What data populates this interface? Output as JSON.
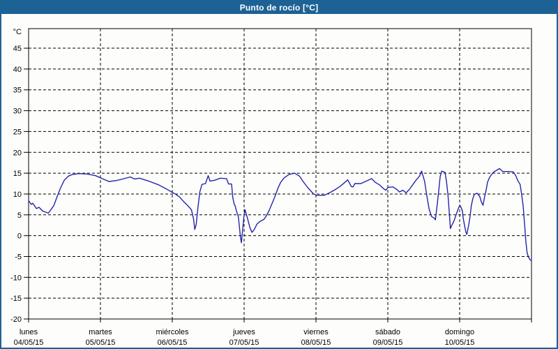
{
  "window": {
    "title": "Punto de rocío [°C]",
    "accent_color": "#1d6295",
    "background_color": "#fdfefb"
  },
  "chart_data": {
    "type": "line",
    "title": "Punto de rocío [°C]",
    "ylabel": "°C",
    "xlabel": "",
    "ylim": [
      -20,
      49.7
    ],
    "xlim_hours": [
      0,
      168
    ],
    "yticks": [
      -20,
      -15,
      -10,
      -5,
      0,
      5,
      10,
      15,
      20,
      25,
      30,
      35,
      40,
      45
    ],
    "grid": "dashed-black",
    "legend": "none",
    "line_color": "#2424aa",
    "x_day_labels": [
      {
        "name": "lunes",
        "date": "04/05/15"
      },
      {
        "name": "martes",
        "date": "05/05/15"
      },
      {
        "name": "miércoles",
        "date": "06/05/15"
      },
      {
        "name": "jueves",
        "date": "07/05/15"
      },
      {
        "name": "viernes",
        "date": "08/05/15"
      },
      {
        "name": "sábado",
        "date": "09/05/15"
      },
      {
        "name": "domingo",
        "date": "10/05/15"
      }
    ],
    "series": [
      {
        "name": "Punto de rocío",
        "unit": "°C",
        "points_hours_degC": [
          [
            0,
            8.4
          ],
          [
            0.9,
            7.5
          ],
          [
            1.4,
            7.8
          ],
          [
            2.6,
            6.5
          ],
          [
            3.5,
            6.8
          ],
          [
            4.7,
            5.9
          ],
          [
            6.6,
            5.4
          ],
          [
            8.4,
            7.2
          ],
          [
            9.6,
            9.5
          ],
          [
            10.7,
            11.5
          ],
          [
            11.9,
            13.3
          ],
          [
            13.3,
            14.3
          ],
          [
            14.7,
            14.7
          ],
          [
            16.8,
            14.9
          ],
          [
            19.6,
            14.8
          ],
          [
            22.4,
            14.4
          ],
          [
            24.9,
            13.6
          ],
          [
            26.8,
            13.0
          ],
          [
            29.1,
            13.2
          ],
          [
            31.4,
            13.6
          ],
          [
            34.0,
            14.1
          ],
          [
            35.4,
            13.6
          ],
          [
            37.1,
            13.8
          ],
          [
            40.1,
            13.1
          ],
          [
            43.4,
            12.2
          ],
          [
            45.8,
            11.3
          ],
          [
            48.0,
            10.4
          ],
          [
            49.0,
            10.0
          ],
          [
            50.4,
            9.3
          ],
          [
            51.8,
            8.2
          ],
          [
            53.2,
            7.2
          ],
          [
            54.4,
            6.2
          ],
          [
            55.1,
            4.0
          ],
          [
            55.5,
            1.5
          ],
          [
            56.0,
            2.7
          ],
          [
            56.6,
            6.9
          ],
          [
            57.2,
            10.5
          ],
          [
            57.9,
            12.3
          ],
          [
            59.1,
            12.5
          ],
          [
            60.0,
            14.4
          ],
          [
            60.6,
            13.1
          ],
          [
            62.1,
            13.3
          ],
          [
            64.0,
            13.8
          ],
          [
            66.1,
            13.7
          ],
          [
            66.8,
            12.4
          ],
          [
            67.8,
            12.4
          ],
          [
            68.2,
            9.2
          ],
          [
            68.7,
            7.5
          ],
          [
            69.0,
            7.2
          ],
          [
            69.4,
            6.0
          ],
          [
            70.1,
            4.5
          ],
          [
            70.8,
            -0.5
          ],
          [
            71.1,
            -1.7
          ],
          [
            71.5,
            1.5
          ],
          [
            72.0,
            5.0
          ],
          [
            72.3,
            6.2
          ],
          [
            73.0,
            4.5
          ],
          [
            73.9,
            2.0
          ],
          [
            74.6,
            0.8
          ],
          [
            75.3,
            1.4
          ],
          [
            76.3,
            2.8
          ],
          [
            77.3,
            3.4
          ],
          [
            78.6,
            3.9
          ],
          [
            79.3,
            4.6
          ],
          [
            80.2,
            5.8
          ],
          [
            81.2,
            7.5
          ],
          [
            82.3,
            9.4
          ],
          [
            83.3,
            11.4
          ],
          [
            84.2,
            12.8
          ],
          [
            85.4,
            13.9
          ],
          [
            87.0,
            14.7
          ],
          [
            88.9,
            15.0
          ],
          [
            90.5,
            14.3
          ],
          [
            91.7,
            13.0
          ],
          [
            93.3,
            11.5
          ],
          [
            95.1,
            10.1
          ],
          [
            96.1,
            9.7
          ],
          [
            98.8,
            9.7
          ],
          [
            100.5,
            10.3
          ],
          [
            102.3,
            11.0
          ],
          [
            104.0,
            11.8
          ],
          [
            105.5,
            12.7
          ],
          [
            106.6,
            13.4
          ],
          [
            107.8,
            11.8
          ],
          [
            108.4,
            11.7
          ],
          [
            109.0,
            12.5
          ],
          [
            111.0,
            12.5
          ],
          [
            113.4,
            13.3
          ],
          [
            114.6,
            13.7
          ],
          [
            115.8,
            12.8
          ],
          [
            117.2,
            12.2
          ],
          [
            118.4,
            11.4
          ],
          [
            119.3,
            10.9
          ],
          [
            120.1,
            11.6
          ],
          [
            121.7,
            11.7
          ],
          [
            123.0,
            11.1
          ],
          [
            123.9,
            10.5
          ],
          [
            125.0,
            10.9
          ],
          [
            126.1,
            10.3
          ],
          [
            127.2,
            11.1
          ],
          [
            128.3,
            12.2
          ],
          [
            129.5,
            13.4
          ],
          [
            130.6,
            14.3
          ],
          [
            131.3,
            15.5
          ],
          [
            132.3,
            13.0
          ],
          [
            133.0,
            9.7
          ],
          [
            133.8,
            6.4
          ],
          [
            134.6,
            4.6
          ],
          [
            135.6,
            4.2
          ],
          [
            135.9,
            3.8
          ],
          [
            136.6,
            8.0
          ],
          [
            137.1,
            11.4
          ],
          [
            137.5,
            14.2
          ],
          [
            138.0,
            15.5
          ],
          [
            139.1,
            15.2
          ],
          [
            139.6,
            13.0
          ],
          [
            140.1,
            9.7
          ],
          [
            140.7,
            4.0
          ],
          [
            140.9,
            1.7
          ],
          [
            141.4,
            2.5
          ],
          [
            142.1,
            3.5
          ],
          [
            142.8,
            5.0
          ],
          [
            143.7,
            6.8
          ],
          [
            144.2,
            7.2
          ],
          [
            144.9,
            6.0
          ],
          [
            145.2,
            4.2
          ],
          [
            145.7,
            2.2
          ],
          [
            146.1,
            0.8
          ],
          [
            146.4,
            0.3
          ],
          [
            147.0,
            2.5
          ],
          [
            147.5,
            4.7
          ],
          [
            147.9,
            7.2
          ],
          [
            148.4,
            8.9
          ],
          [
            148.9,
            9.9
          ],
          [
            149.8,
            10.2
          ],
          [
            150.7,
            9.4
          ],
          [
            151.3,
            8.0
          ],
          [
            151.8,
            7.3
          ],
          [
            152.3,
            9.2
          ],
          [
            152.8,
            10.8
          ],
          [
            153.3,
            12.8
          ],
          [
            154.0,
            14.0
          ],
          [
            155.2,
            15.2
          ],
          [
            156.4,
            15.7
          ],
          [
            157.3,
            16.1
          ],
          [
            158.4,
            15.4
          ],
          [
            160.3,
            15.4
          ],
          [
            161.9,
            15.3
          ],
          [
            162.8,
            14.3
          ],
          [
            163.5,
            13.1
          ],
          [
            164.2,
            12.3
          ],
          [
            164.7,
            10.0
          ],
          [
            165.2,
            7.2
          ],
          [
            165.5,
            4.4
          ],
          [
            165.8,
            1.7
          ],
          [
            166.1,
            -1.2
          ],
          [
            166.5,
            -4.0
          ],
          [
            166.9,
            -5.0
          ],
          [
            167.5,
            -5.8
          ],
          [
            168.0,
            -6.0
          ]
        ]
      }
    ]
  }
}
